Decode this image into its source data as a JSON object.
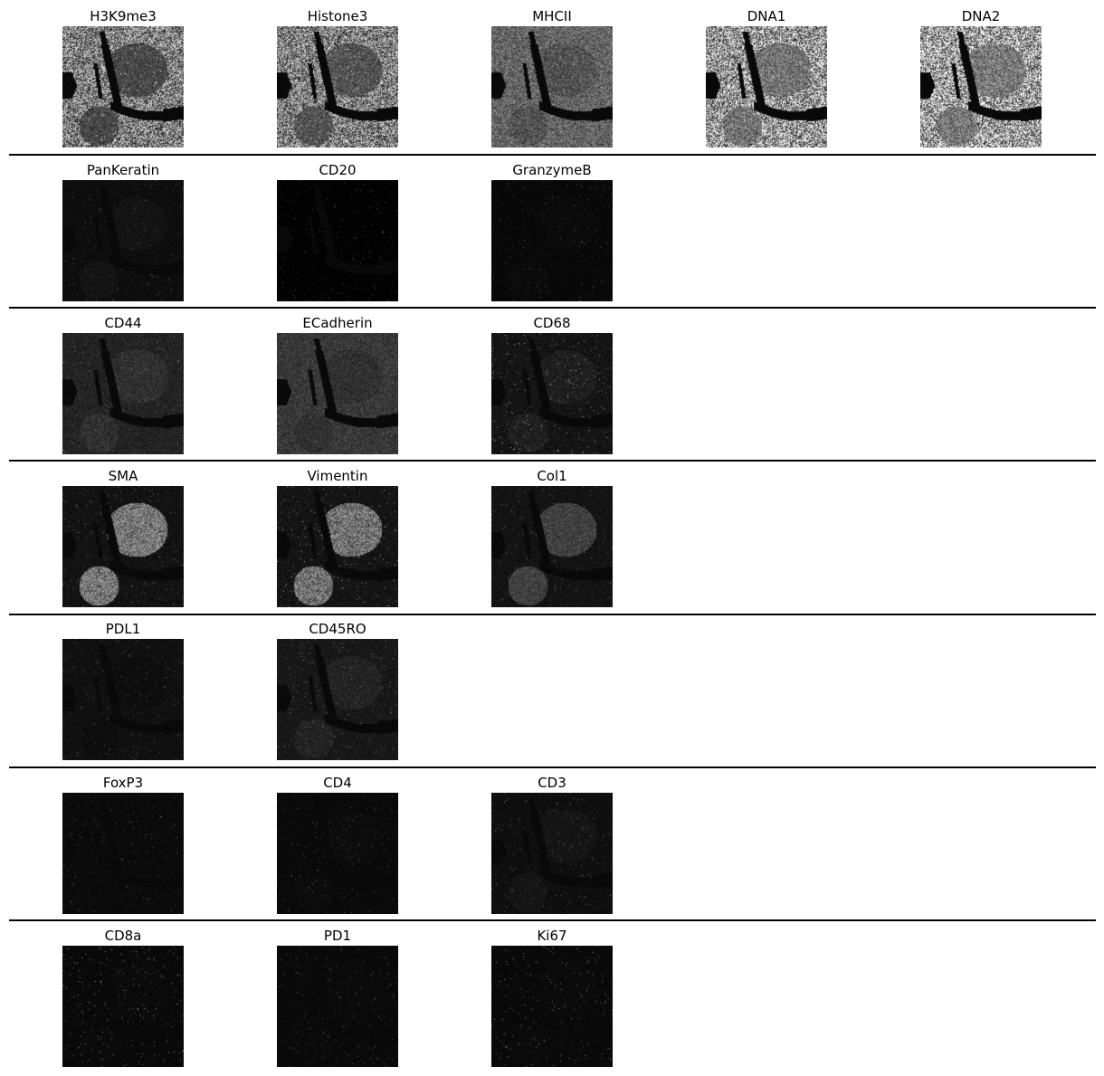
{
  "figure": {
    "rows": [
      {
        "panels": [
          {
            "title": "H3K9me3",
            "bg": 0.55,
            "tissue": 0.35,
            "speck": 0.75,
            "contrast": 1.0,
            "nuclear": true
          },
          {
            "title": "Histone3",
            "bg": 0.55,
            "tissue": 0.4,
            "speck": 0.7,
            "contrast": 1.0,
            "nuclear": true
          },
          {
            "title": "MHCII",
            "bg": 0.55,
            "tissue": 0.45,
            "speck": 0.35,
            "contrast": 0.8,
            "nuclear": false
          },
          {
            "title": "DNA1",
            "bg": 0.65,
            "tissue": 0.55,
            "speck": 0.7,
            "contrast": 1.0,
            "nuclear": true
          },
          {
            "title": "DNA2",
            "bg": 0.68,
            "tissue": 0.58,
            "speck": 0.7,
            "contrast": 1.0,
            "nuclear": true
          }
        ]
      },
      {
        "panels": [
          {
            "title": "PanKeratin",
            "bg": 0.1,
            "tissue": 0.14,
            "speck": 0.05,
            "contrast": 0.4,
            "nuclear": false
          },
          {
            "title": "CD20",
            "bg": 0.02,
            "tissue": 0.02,
            "speck": 0.01,
            "contrast": 0.2,
            "nuclear": false
          },
          {
            "title": "GranzymeB",
            "bg": 0.06,
            "tissue": 0.08,
            "speck": 0.06,
            "contrast": 0.4,
            "nuclear": false
          }
        ]
      },
      {
        "panels": [
          {
            "title": "CD44",
            "bg": 0.22,
            "tissue": 0.3,
            "speck": 0.2,
            "contrast": 0.6,
            "nuclear": false
          },
          {
            "title": "ECadherin",
            "bg": 0.35,
            "tissue": 0.3,
            "speck": 0.2,
            "contrast": 0.6,
            "nuclear": false
          },
          {
            "title": "CD68",
            "bg": 0.1,
            "tissue": 0.15,
            "speck": 0.35,
            "contrast": 1.0,
            "nuclear": false
          }
        ]
      },
      {
        "panels": [
          {
            "title": "SMA",
            "bg": 0.1,
            "tissue": 0.65,
            "speck": 0.15,
            "contrast": 0.8,
            "nuclear": false
          },
          {
            "title": "Vimentin",
            "bg": 0.1,
            "tissue": 0.55,
            "speck": 0.35,
            "contrast": 1.0,
            "nuclear": false
          },
          {
            "title": "Col1",
            "bg": 0.12,
            "tissue": 0.4,
            "speck": 0.1,
            "contrast": 0.6,
            "nuclear": false
          }
        ]
      },
      {
        "panels": [
          {
            "title": "PDL1",
            "bg": 0.12,
            "tissue": 0.1,
            "speck": 0.08,
            "contrast": 0.4,
            "nuclear": false
          },
          {
            "title": "CD45RO",
            "bg": 0.15,
            "tissue": 0.22,
            "speck": 0.18,
            "contrast": 0.6,
            "nuclear": false
          }
        ]
      },
      {
        "panels": [
          {
            "title": "FoxP3",
            "bg": 0.08,
            "tissue": 0.08,
            "speck": 0.06,
            "contrast": 0.4,
            "nuclear": false
          },
          {
            "title": "CD4",
            "bg": 0.07,
            "tissue": 0.09,
            "speck": 0.08,
            "contrast": 0.4,
            "nuclear": false
          },
          {
            "title": "CD3",
            "bg": 0.1,
            "tissue": 0.14,
            "speck": 0.14,
            "contrast": 0.5,
            "nuclear": false
          }
        ]
      },
      {
        "panels": [
          {
            "title": "CD8a",
            "bg": 0.05,
            "tissue": 0.06,
            "speck": 0.25,
            "contrast": 0.8,
            "nuclear": false
          },
          {
            "title": "PD1",
            "bg": 0.07,
            "tissue": 0.08,
            "speck": 0.08,
            "contrast": 0.4,
            "nuclear": false
          },
          {
            "title": "Ki67",
            "bg": 0.05,
            "tissue": 0.06,
            "speck": 0.2,
            "contrast": 0.8,
            "nuclear": false
          }
        ]
      }
    ]
  }
}
